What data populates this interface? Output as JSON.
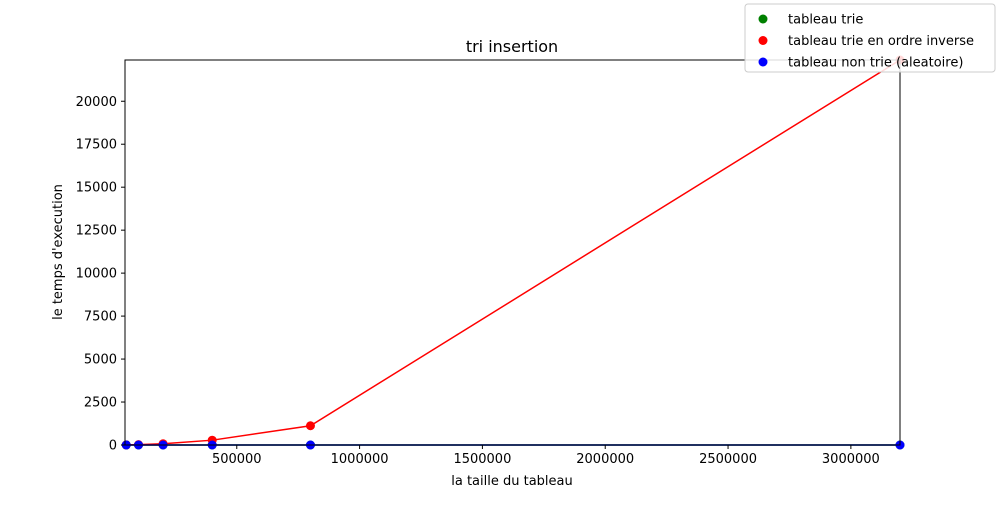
{
  "chart_data": {
    "type": "line",
    "title": "tri insertion",
    "xlabel": "la taille du tableau",
    "ylabel": "le temps d'execution",
    "xlim": [
      45000,
      3200000
    ],
    "ylim": [
      0,
      22400
    ],
    "xticks": [
      500000,
      1000000,
      1500000,
      2000000,
      2500000,
      3000000
    ],
    "xtick_labels": [
      "500000",
      "1000000",
      "1500000",
      "2000000",
      "2500000",
      "3000000"
    ],
    "yticks": [
      0,
      2500,
      5000,
      7500,
      10000,
      12500,
      15000,
      17500,
      20000
    ],
    "ytick_labels": [
      "0",
      "2500",
      "5000",
      "7500",
      "10000",
      "12500",
      "15000",
      "17500",
      "20000"
    ],
    "grid": false,
    "legend_position": "top-right",
    "series": [
      {
        "name": "tableau trie",
        "color": "#008000",
        "x": [
          50000,
          100000,
          200000,
          400000,
          800000,
          3200000
        ],
        "y": [
          0,
          0,
          0,
          0,
          0,
          0
        ]
      },
      {
        "name": "tableau trie en ordre inverse",
        "color": "#ff0000",
        "x": [
          50000,
          100000,
          200000,
          400000,
          800000,
          3200000
        ],
        "y": [
          5,
          20,
          70,
          280,
          1120,
          22400
        ]
      },
      {
        "name": "tableau non trie (aleatoire)",
        "color": "#0000ff",
        "x": [
          50000,
          100000,
          200000,
          400000,
          800000,
          3200000
        ],
        "y": [
          0,
          0,
          0,
          0,
          0,
          0
        ]
      }
    ]
  }
}
